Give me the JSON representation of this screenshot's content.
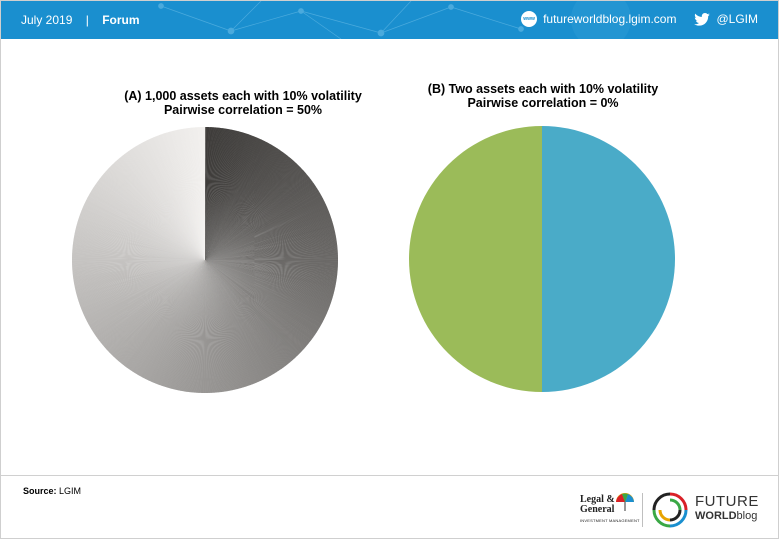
{
  "header": {
    "date": "July 2019",
    "separator": "|",
    "section": "Forum",
    "site": "futureworldblog.lgim.com",
    "www_icon_text": "www",
    "www_icon": "globe-icon",
    "twitter_icon": "twitter-bird-icon",
    "twitter": "@LGIM",
    "background_color": "#1a8fcf"
  },
  "chart_data": [
    {
      "type": "pie",
      "title_lines": [
        "(A) 1,000 assets each with 10% volatility",
        "Pairwise correlation = 50%"
      ],
      "slice_count": 1000,
      "values": "1000 equal slices of 0.1% each",
      "colors": "grey gradient, dark to light"
    },
    {
      "type": "pie",
      "title_lines": [
        "(B) Two assets each with 10% volatility",
        "Pairwise correlation = 0%"
      ],
      "values": [
        50,
        50
      ],
      "colors": [
        "#4aabc8",
        "#9bbb59"
      ]
    }
  ],
  "footer": {
    "source_label": "Source:",
    "source_value": "LGIM",
    "lg_logo_line1": "Legal &",
    "lg_logo_line2": "General",
    "lg_logo_sub": "INVESTMENT MANAGEMENT",
    "fw_logo_line1": "FUTURE",
    "fw_logo_world": "WORLD",
    "fw_logo_blog": "blog"
  }
}
